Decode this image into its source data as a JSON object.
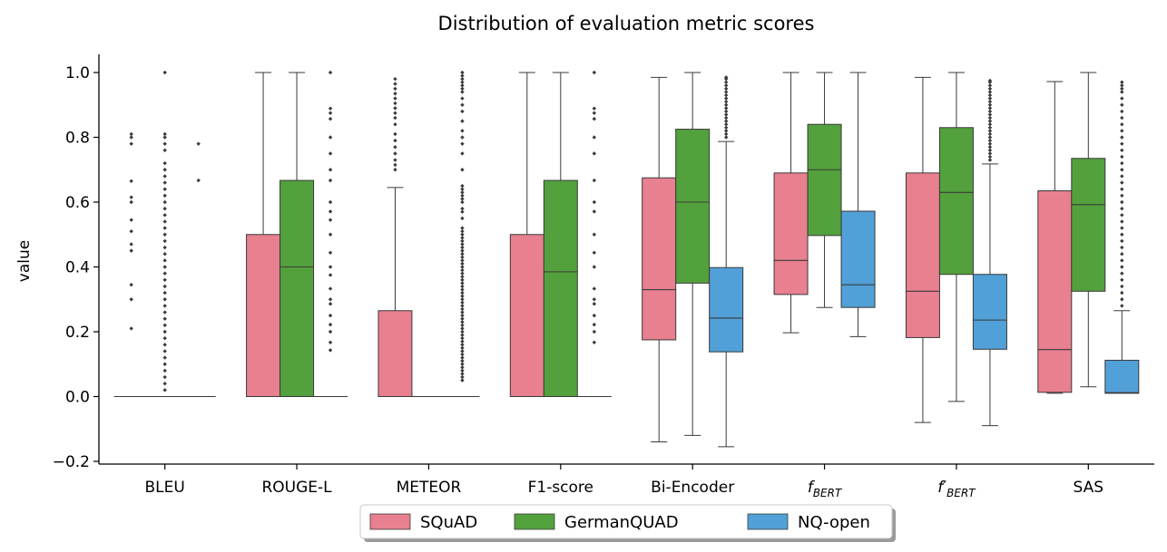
{
  "chart_data": {
    "type": "box",
    "title": "Distribution of evaluation metric scores",
    "xlabel": "",
    "ylabel": "value",
    "ylim": [
      -0.2,
      1.05
    ],
    "yticks": [
      -0.2,
      0.0,
      0.2,
      0.4,
      0.6,
      0.8,
      1.0
    ],
    "ytick_labels": [
      "−0.2",
      "0.0",
      "0.2",
      "0.4",
      "0.6",
      "0.8",
      "1.0"
    ],
    "categories": [
      {
        "label": "BLEU"
      },
      {
        "label": "ROUGE-L"
      },
      {
        "label": "METEOR"
      },
      {
        "label": "F1-score"
      },
      {
        "label": "Bi-Encoder"
      },
      {
        "label": "f",
        "sub": "BERT"
      },
      {
        "label": "f′",
        "sub": "BERT"
      },
      {
        "label": "SAS"
      }
    ],
    "legend_position": "bottom-center",
    "series": [
      {
        "name": "SQuAD",
        "color": "#e8808f",
        "boxes": [
          {
            "q1": 0.0,
            "median": 0.0,
            "q3": 0.0,
            "whislo": 0.0,
            "whishi": 0.0,
            "fliers": [
              0.21,
              0.3,
              0.345,
              0.45,
              0.47,
              0.51,
              0.545,
              0.6,
              0.615,
              0.665,
              0.78,
              0.8,
              0.81
            ]
          },
          {
            "q1": 0.0,
            "median": 0.0,
            "q3": 0.5,
            "whislo": 0.0,
            "whishi": 1.0,
            "fliers": []
          },
          {
            "q1": 0.0,
            "median": 0.0,
            "q3": 0.265,
            "whislo": 0.0,
            "whishi": 0.645,
            "fliers": [
              0.7,
              0.715,
              0.73,
              0.75,
              0.77,
              0.79,
              0.81,
              0.84,
              0.86,
              0.875,
              0.89,
              0.905,
              0.92,
              0.935,
              0.95,
              0.965,
              0.98
            ]
          },
          {
            "q1": 0.0,
            "median": 0.0,
            "q3": 0.5,
            "whislo": 0.0,
            "whishi": 1.0,
            "fliers": []
          },
          {
            "q1": 0.175,
            "median": 0.33,
            "q3": 0.675,
            "whislo": -0.14,
            "whishi": 0.985,
            "fliers": []
          },
          {
            "q1": 0.315,
            "median": 0.42,
            "q3": 0.69,
            "whislo": 0.197,
            "whishi": 1.0,
            "fliers": []
          },
          {
            "q1": 0.182,
            "median": 0.325,
            "q3": 0.69,
            "whislo": -0.08,
            "whishi": 0.985,
            "fliers": []
          },
          {
            "q1": 0.013,
            "median": 0.145,
            "q3": 0.635,
            "whislo": 0.01,
            "whishi": 0.972,
            "fliers": []
          }
        ]
      },
      {
        "name": "GermanQUAD",
        "color": "#53a13c",
        "boxes": [
          {
            "q1": 0.0,
            "median": 0.0,
            "q3": 0.0,
            "whislo": 0.0,
            "whishi": 0.0,
            "fliers": [
              0.02,
              0.04,
              0.06,
              0.08,
              0.1,
              0.12,
              0.14,
              0.16,
              0.18,
              0.2,
              0.22,
              0.24,
              0.26,
              0.28,
              0.3,
              0.32,
              0.34,
              0.36,
              0.38,
              0.4,
              0.42,
              0.44,
              0.46,
              0.48,
              0.5,
              0.52,
              0.54,
              0.56,
              0.58,
              0.6,
              0.62,
              0.64,
              0.66,
              0.68,
              0.7,
              0.72,
              0.76,
              0.78,
              0.8,
              0.81,
              1.0
            ]
          },
          {
            "q1": 0.0,
            "median": 0.4,
            "q3": 0.667,
            "whislo": 0.0,
            "whishi": 1.0,
            "fliers": []
          },
          {
            "q1": 0.0,
            "median": 0.0,
            "q3": 0.0,
            "whislo": 0.0,
            "whishi": 0.0,
            "fliers": []
          },
          {
            "q1": 0.0,
            "median": 0.385,
            "q3": 0.667,
            "whislo": 0.0,
            "whishi": 1.0,
            "fliers": []
          },
          {
            "q1": 0.35,
            "median": 0.6,
            "q3": 0.825,
            "whislo": -0.12,
            "whishi": 1.0,
            "fliers": []
          },
          {
            "q1": 0.497,
            "median": 0.7,
            "q3": 0.84,
            "whislo": 0.275,
            "whishi": 1.0,
            "fliers": []
          },
          {
            "q1": 0.377,
            "median": 0.63,
            "q3": 0.83,
            "whislo": -0.015,
            "whishi": 1.0,
            "fliers": []
          },
          {
            "q1": 0.325,
            "median": 0.592,
            "q3": 0.735,
            "whislo": 0.03,
            "whishi": 1.0,
            "fliers": []
          }
        ]
      },
      {
        "name": "NQ-open",
        "color": "#52a0d8",
        "boxes": [
          {
            "q1": 0.0,
            "median": 0.0,
            "q3": 0.0,
            "whislo": 0.0,
            "whishi": 0.0,
            "fliers": [
              0.667,
              0.78
            ]
          },
          {
            "q1": 0.0,
            "median": 0.0,
            "q3": 0.0,
            "whislo": 0.0,
            "whishi": 0.0,
            "fliers": [
              0.143,
              0.167,
              0.2,
              0.222,
              0.25,
              0.286,
              0.3,
              0.333,
              0.375,
              0.4,
              0.444,
              0.5,
              0.545,
              0.571,
              0.6,
              0.667,
              0.7,
              0.75,
              0.8,
              0.857,
              0.875,
              0.889,
              1.0
            ]
          },
          {
            "q1": 0.0,
            "median": 0.0,
            "q3": 0.0,
            "whislo": 0.0,
            "whishi": 0.0,
            "fliers": [
              0.05,
              0.06,
              0.07,
              0.08,
              0.09,
              0.1,
              0.11,
              0.12,
              0.13,
              0.14,
              0.15,
              0.16,
              0.17,
              0.18,
              0.19,
              0.2,
              0.21,
              0.22,
              0.23,
              0.24,
              0.25,
              0.26,
              0.27,
              0.28,
              0.29,
              0.3,
              0.31,
              0.32,
              0.33,
              0.34,
              0.35,
              0.36,
              0.37,
              0.38,
              0.39,
              0.4,
              0.41,
              0.42,
              0.43,
              0.44,
              0.45,
              0.46,
              0.47,
              0.48,
              0.49,
              0.5,
              0.51,
              0.52,
              0.55,
              0.57,
              0.58,
              0.6,
              0.61,
              0.62,
              0.63,
              0.64,
              0.65,
              0.7,
              0.75,
              0.78,
              0.8,
              0.82,
              0.85,
              0.88,
              0.9,
              0.92,
              0.94,
              0.95,
              0.96,
              0.97,
              0.98,
              0.99,
              1.0
            ]
          },
          {
            "q1": 0.0,
            "median": 0.0,
            "q3": 0.0,
            "whislo": 0.0,
            "whishi": 0.0,
            "fliers": [
              0.167,
              0.2,
              0.222,
              0.25,
              0.286,
              0.3,
              0.333,
              0.4,
              0.444,
              0.5,
              0.571,
              0.6,
              0.667,
              0.75,
              0.8,
              0.857,
              0.875,
              0.889,
              1.0
            ]
          },
          {
            "q1": 0.138,
            "median": 0.242,
            "q3": 0.398,
            "whislo": -0.155,
            "whishi": 0.787,
            "fliers": [
              0.8,
              0.81,
              0.82,
              0.83,
              0.84,
              0.85,
              0.86,
              0.87,
              0.88,
              0.89,
              0.9,
              0.91,
              0.92,
              0.93,
              0.94,
              0.95,
              0.96,
              0.97,
              0.98,
              0.985
            ]
          },
          {
            "q1": 0.275,
            "median": 0.345,
            "q3": 0.572,
            "whislo": 0.185,
            "whishi": 1.0,
            "fliers": []
          },
          {
            "q1": 0.146,
            "median": 0.236,
            "q3": 0.377,
            "whislo": -0.09,
            "whishi": 0.718,
            "fliers": [
              0.73,
              0.74,
              0.75,
              0.76,
              0.77,
              0.78,
              0.79,
              0.8,
              0.81,
              0.82,
              0.83,
              0.84,
              0.85,
              0.86,
              0.87,
              0.88,
              0.89,
              0.9,
              0.91,
              0.92,
              0.93,
              0.94,
              0.95,
              0.96,
              0.97,
              0.975
            ]
          },
          {
            "q1": 0.01,
            "median": 0.012,
            "q3": 0.112,
            "whislo": 0.01,
            "whishi": 0.265,
            "fliers": [
              0.28,
              0.3,
              0.32,
              0.34,
              0.36,
              0.38,
              0.4,
              0.42,
              0.44,
              0.46,
              0.48,
              0.5,
              0.52,
              0.54,
              0.56,
              0.58,
              0.6,
              0.62,
              0.64,
              0.66,
              0.68,
              0.7,
              0.72,
              0.74,
              0.76,
              0.78,
              0.8,
              0.82,
              0.84,
              0.86,
              0.88,
              0.9,
              0.92,
              0.94,
              0.95,
              0.96,
              0.97
            ]
          }
        ]
      }
    ]
  }
}
